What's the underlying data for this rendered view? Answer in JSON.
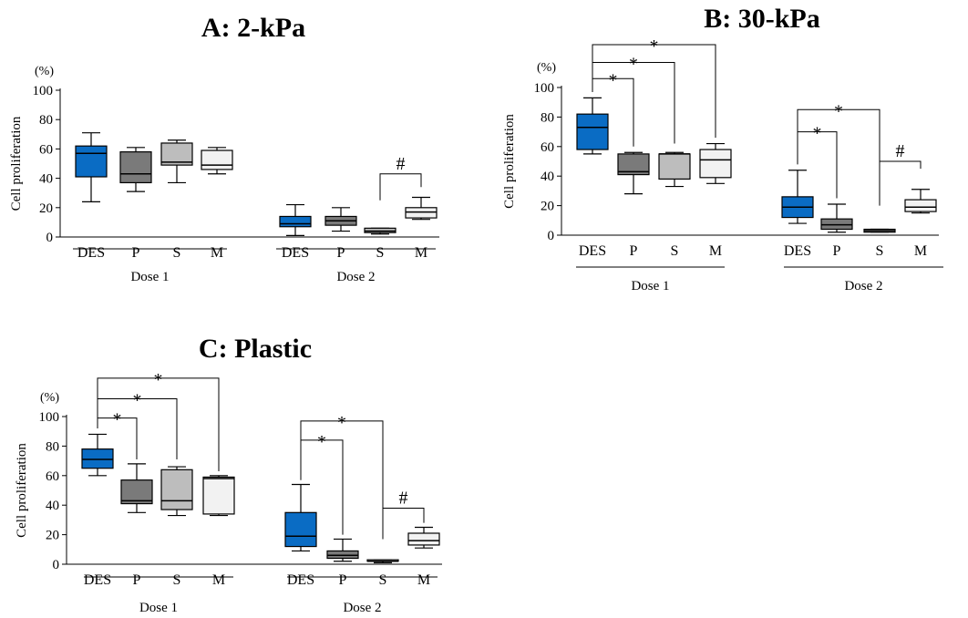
{
  "colors": {
    "DES": "#0a6cc4",
    "P": "#7a7a7a",
    "S": "#bdbdbd",
    "M": "#f2f2f2",
    "stroke": "#000000"
  },
  "chart_data": [
    {
      "type": "box",
      "title": "A: 2-kPa",
      "ylabel": "Cell proliferation",
      "yunit": "(%)",
      "ylim": [
        0,
        100
      ],
      "yticks": [
        0,
        20,
        40,
        60,
        80,
        100
      ],
      "categories": [
        "DES",
        "P",
        "S",
        "M"
      ],
      "groups": [
        {
          "name": "Dose 1",
          "boxes": [
            {
              "cat": "DES",
              "min": 24,
              "q1": 41,
              "median": 57,
              "q3": 62,
              "max": 71
            },
            {
              "cat": "P",
              "min": 31,
              "q1": 37,
              "median": 43,
              "q3": 58,
              "max": 61
            },
            {
              "cat": "S",
              "min": 37,
              "q1": 49,
              "median": 51,
              "q3": 64,
              "max": 66
            },
            {
              "cat": "M",
              "min": 43,
              "q1": 46,
              "median": 49,
              "q3": 59,
              "max": 61
            }
          ]
        },
        {
          "name": "Dose 2",
          "boxes": [
            {
              "cat": "DES",
              "min": 1,
              "q1": 7,
              "median": 9,
              "q3": 14,
              "max": 22
            },
            {
              "cat": "P",
              "min": 4,
              "q1": 8,
              "median": 11,
              "q3": 14,
              "max": 20
            },
            {
              "cat": "S",
              "min": 2,
              "q1": 3,
              "median": 4,
              "q3": 6,
              "max": 6
            },
            {
              "cat": "M",
              "min": 12,
              "q1": 13,
              "median": 17,
              "q3": 20,
              "max": 27
            }
          ]
        }
      ],
      "annotations": [
        {
          "symbol": "#",
          "group": 1,
          "from": 2,
          "to": 3,
          "y": 43,
          "drop": [
            25,
            34
          ]
        }
      ]
    },
    {
      "type": "box",
      "title": "B: 30-kPa",
      "ylabel": "Cell proliferation",
      "yunit": "(%)",
      "ylim": [
        0,
        100
      ],
      "yticks": [
        0,
        20,
        40,
        60,
        80,
        100
      ],
      "categories": [
        "DES",
        "P",
        "S",
        "M"
      ],
      "groups": [
        {
          "name": "Dose 1",
          "boxes": [
            {
              "cat": "DES",
              "min": 55,
              "q1": 58,
              "median": 73,
              "q3": 82,
              "max": 93
            },
            {
              "cat": "P",
              "min": 28,
              "q1": 41,
              "median": 43,
              "q3": 55,
              "max": 56
            },
            {
              "cat": "S",
              "min": 33,
              "q1": 38,
              "median": 55,
              "q3": 55,
              "max": 56
            },
            {
              "cat": "M",
              "min": 35,
              "q1": 39,
              "median": 51,
              "q3": 58,
              "max": 62
            }
          ]
        },
        {
          "name": "Dose 2",
          "boxes": [
            {
              "cat": "DES",
              "min": 8,
              "q1": 12,
              "median": 19,
              "q3": 26,
              "max": 44
            },
            {
              "cat": "P",
              "min": 2,
              "q1": 4,
              "median": 7,
              "q3": 11,
              "max": 21
            },
            {
              "cat": "S",
              "min": 2,
              "q1": 2,
              "median": 3,
              "q3": 4,
              "max": 4
            },
            {
              "cat": "M",
              "min": 15,
              "q1": 16,
              "median": 19,
              "q3": 24,
              "max": 31
            }
          ]
        }
      ],
      "annotations": [
        {
          "symbol": "*",
          "group": 0,
          "from": 0,
          "to": 1,
          "y": 106,
          "drop": [
            97,
            60
          ]
        },
        {
          "symbol": "*",
          "group": 0,
          "from": 0,
          "to": 2,
          "y": 117,
          "drop": [
            97,
            62
          ]
        },
        {
          "symbol": "*",
          "group": 0,
          "from": 0,
          "to": 3,
          "y": 129,
          "drop": [
            97,
            66
          ]
        },
        {
          "symbol": "*",
          "group": 1,
          "from": 0,
          "to": 1,
          "y": 70,
          "drop": [
            48,
            25
          ]
        },
        {
          "symbol": "*",
          "group": 1,
          "from": 0,
          "to": 2,
          "y": 85,
          "drop": [
            48,
            22
          ]
        },
        {
          "symbol": "#",
          "group": 1,
          "from": 2,
          "to": 3,
          "y": 50,
          "drop": [
            20,
            45
          ]
        }
      ]
    },
    {
      "type": "box",
      "title": "C: Plastic",
      "ylabel": "Cell proliferation",
      "yunit": "(%)",
      "ylim": [
        0,
        100
      ],
      "yticks": [
        0,
        20,
        40,
        60,
        80,
        100
      ],
      "categories": [
        "DES",
        "P",
        "S",
        "M"
      ],
      "groups": [
        {
          "name": "Dose 1",
          "boxes": [
            {
              "cat": "DES",
              "min": 60,
              "q1": 65,
              "median": 71,
              "q3": 78,
              "max": 88
            },
            {
              "cat": "P",
              "min": 35,
              "q1": 41,
              "median": 43,
              "q3": 57,
              "max": 68
            },
            {
              "cat": "S",
              "min": 33,
              "q1": 37,
              "median": 43,
              "q3": 64,
              "max": 66
            },
            {
              "cat": "M",
              "min": 33,
              "q1": 34,
              "median": 58,
              "q3": 59,
              "max": 60
            }
          ]
        },
        {
          "name": "Dose 2",
          "boxes": [
            {
              "cat": "DES",
              "min": 9,
              "q1": 12,
              "median": 19,
              "q3": 35,
              "max": 54
            },
            {
              "cat": "P",
              "min": 2,
              "q1": 4,
              "median": 6,
              "q3": 9,
              "max": 17
            },
            {
              "cat": "S",
              "min": 1,
              "q1": 2,
              "median": 2,
              "q3": 3,
              "max": 3
            },
            {
              "cat": "M",
              "min": 11,
              "q1": 13,
              "median": 16,
              "q3": 21,
              "max": 25
            }
          ]
        }
      ],
      "annotations": [
        {
          "symbol": "*",
          "group": 0,
          "from": 0,
          "to": 1,
          "y": 99,
          "drop": [
            92,
            71
          ]
        },
        {
          "symbol": "*",
          "group": 0,
          "from": 0,
          "to": 2,
          "y": 112,
          "drop": [
            92,
            71
          ]
        },
        {
          "symbol": "*",
          "group": 0,
          "from": 0,
          "to": 3,
          "y": 126,
          "drop": [
            92,
            63
          ]
        },
        {
          "symbol": "*",
          "group": 1,
          "from": 0,
          "to": 1,
          "y": 84,
          "drop": [
            57,
            20
          ]
        },
        {
          "symbol": "*",
          "group": 1,
          "from": 0,
          "to": 2,
          "y": 97,
          "drop": [
            57,
            17
          ]
        },
        {
          "symbol": "#",
          "group": 1,
          "from": 2,
          "to": 3,
          "y": 38,
          "drop": [
            17,
            28
          ]
        }
      ]
    }
  ]
}
